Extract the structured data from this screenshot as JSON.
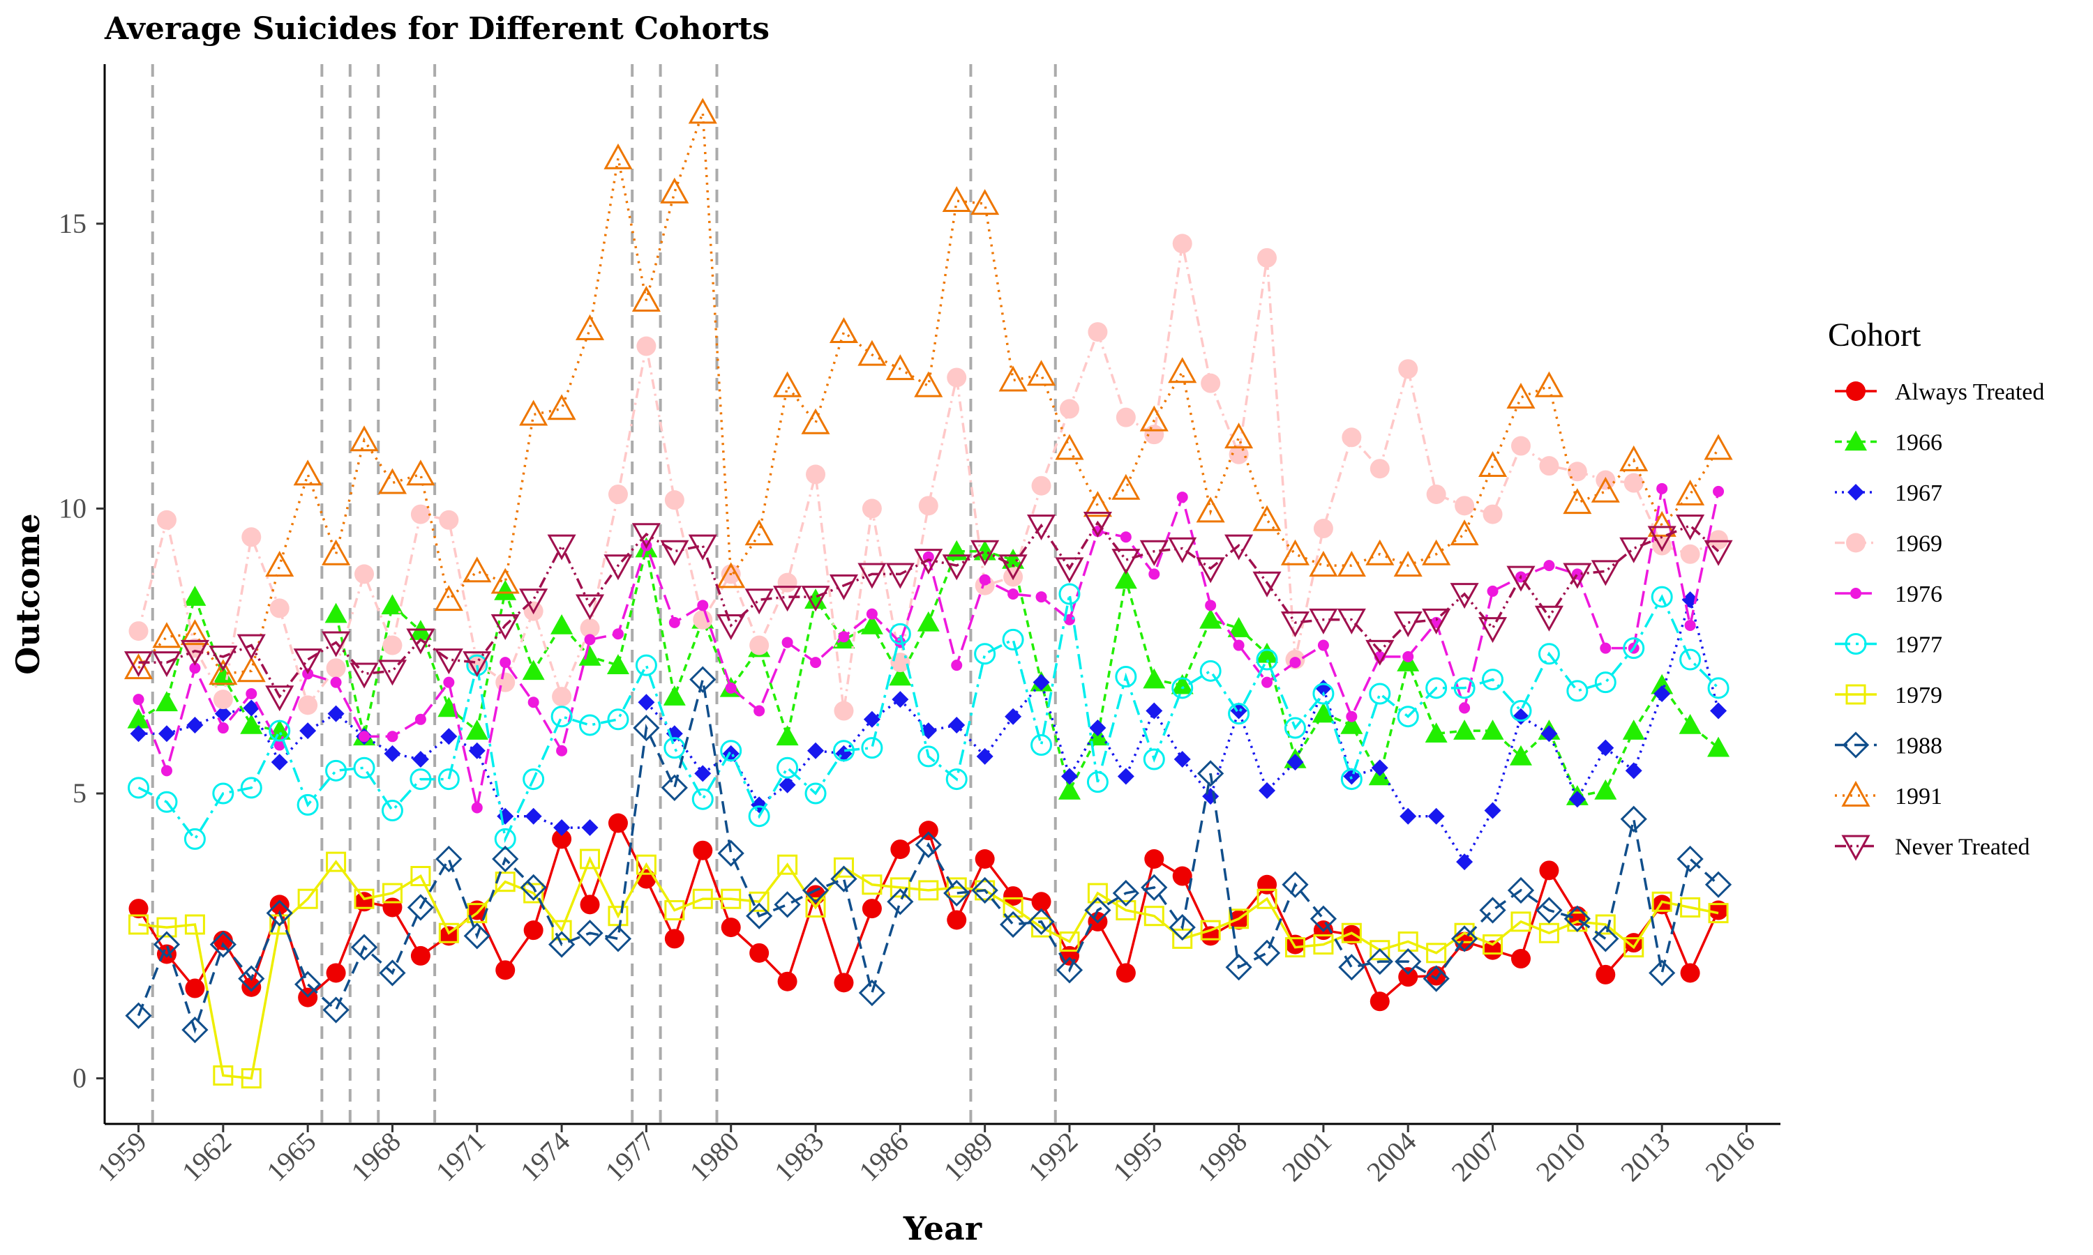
{
  "chart_data": {
    "type": "line",
    "title": "Average Suicides for Different Cohorts",
    "xlabel": "Year",
    "ylabel": "Outcome",
    "xlim": [
      1957.8,
      2017.2
    ],
    "ylim": [
      -0.8,
      17.8
    ],
    "xticks": [
      1959,
      1962,
      1965,
      1968,
      1971,
      1974,
      1977,
      1980,
      1983,
      1986,
      1989,
      1992,
      1995,
      1998,
      2001,
      2004,
      2007,
      2010,
      2013,
      2016
    ],
    "x_tick_labels": [
      "1959",
      "1962",
      "1965",
      "1968",
      "1971",
      "1974",
      "1977",
      "1980",
      "1983",
      "1986",
      "1989",
      "1992",
      "1995",
      "1998",
      "2001",
      "2004",
      "2007",
      "2010",
      "2013",
      "2016"
    ],
    "yticks": [
      0,
      5,
      10,
      15
    ],
    "y_tick_labels": [
      "0",
      "5",
      "10",
      "15"
    ],
    "vlines": [
      1959.5,
      1965.5,
      1966.5,
      1967.5,
      1969.5,
      1976.5,
      1977.5,
      1979.5,
      1988.5,
      1991.5
    ],
    "grid": false,
    "legend": {
      "title": "Cohort",
      "position": "right"
    },
    "x": [
      1959,
      1960,
      1961,
      1962,
      1963,
      1964,
      1965,
      1966,
      1967,
      1968,
      1969,
      1970,
      1971,
      1972,
      1973,
      1974,
      1975,
      1976,
      1977,
      1978,
      1979,
      1980,
      1981,
      1982,
      1983,
      1984,
      1985,
      1986,
      1987,
      1988,
      1989,
      1990,
      1991,
      1992,
      1993,
      1994,
      1995,
      1996,
      1997,
      1998,
      1999,
      2000,
      2001,
      2002,
      2003,
      2004,
      2005,
      2006,
      2007,
      2008,
      2009,
      2010,
      2011,
      2012,
      2013,
      2014,
      2015
    ],
    "series": [
      {
        "name": "Always Treated",
        "color": "#EE0000",
        "dash": "",
        "marker": "circle-filled",
        "values": [
          2.98,
          2.18,
          1.58,
          2.42,
          1.6,
          3.05,
          1.42,
          1.85,
          3.1,
          3.0,
          2.15,
          2.5,
          2.95,
          1.9,
          2.6,
          4.2,
          3.05,
          4.48,
          3.5,
          2.45,
          4.0,
          2.65,
          2.2,
          1.7,
          3.22,
          1.68,
          2.98,
          4.02,
          4.35,
          2.78,
          3.85,
          3.2,
          3.1,
          2.15,
          2.75,
          1.85,
          3.85,
          3.55,
          2.5,
          2.78,
          3.4,
          2.35,
          2.6,
          2.52,
          1.35,
          1.78,
          1.8,
          2.4,
          2.25,
          2.1,
          3.65,
          2.85,
          1.82,
          2.38,
          3.05,
          1.85,
          2.95
        ]
      },
      {
        "name": "1966",
        "color": "#22EE00",
        "dash": "10,7",
        "marker": "triangle-filled",
        "values": [
          6.3,
          6.6,
          8.45,
          7.05,
          6.2,
          6.1,
          null,
          8.15,
          6.0,
          8.3,
          7.85,
          6.5,
          6.1,
          8.55,
          7.15,
          7.95,
          7.4,
          7.25,
          9.3,
          6.7,
          8.05,
          6.85,
          7.55,
          6.0,
          8.4,
          7.7,
          7.95,
          7.05,
          8.0,
          9.25,
          9.25,
          9.1,
          6.95,
          5.05,
          6.0,
          8.75,
          7.0,
          6.9,
          8.05,
          7.9,
          7.45,
          5.6,
          6.4,
          6.2,
          5.3,
          7.3,
          6.05,
          6.1,
          6.1,
          5.65,
          6.1,
          4.95,
          5.05,
          6.1,
          6.9,
          6.2,
          5.8
        ]
      },
      {
        "name": "1967",
        "color": "#1818EE",
        "dash": "3,7",
        "marker": "diamond-filled",
        "values": [
          6.05,
          6.05,
          6.2,
          6.4,
          6.5,
          5.55,
          6.1,
          6.4,
          6.0,
          5.7,
          5.6,
          6.0,
          5.75,
          4.6,
          4.6,
          4.4,
          4.4,
          null,
          6.6,
          6.05,
          5.35,
          5.7,
          4.8,
          5.15,
          5.75,
          5.7,
          6.3,
          6.65,
          6.1,
          6.2,
          5.65,
          6.35,
          6.95,
          5.3,
          6.15,
          5.3,
          6.45,
          5.6,
          4.95,
          6.45,
          5.05,
          5.55,
          6.85,
          5.3,
          5.45,
          4.6,
          4.6,
          3.8,
          4.7,
          6.35,
          6.05,
          4.9,
          5.8,
          5.4,
          6.75,
          8.4,
          6.45
        ]
      },
      {
        "name": "1969",
        "color": "#FFC8C8",
        "dash": "14,7,3,7",
        "marker": "circle-filled",
        "values": [
          7.85,
          9.8,
          7.55,
          6.65,
          9.5,
          8.25,
          6.55,
          7.2,
          8.85,
          7.6,
          9.9,
          9.8,
          7.3,
          6.95,
          8.2,
          6.7,
          7.9,
          10.25,
          12.85,
          10.15,
          8.05,
          8.85,
          7.6,
          8.7,
          10.6,
          6.45,
          10.0,
          7.3,
          10.05,
          12.3,
          8.65,
          8.8,
          10.4,
          11.75,
          13.1,
          11.6,
          11.3,
          14.65,
          12.2,
          10.95,
          14.4,
          7.35,
          9.65,
          11.25,
          10.7,
          12.45,
          10.25,
          10.05,
          9.9,
          11.1,
          10.75,
          10.65,
          10.5,
          10.45,
          9.35,
          9.2,
          9.45
        ]
      },
      {
        "name": "1976",
        "color": "#EE18DD",
        "dash": "22,9",
        "marker": "circle-small",
        "values": [
          6.65,
          5.4,
          7.2,
          6.15,
          6.75,
          5.85,
          7.1,
          6.95,
          6.0,
          6.0,
          6.3,
          6.95,
          4.75,
          7.3,
          6.6,
          5.75,
          7.7,
          7.8,
          9.35,
          8.0,
          8.3,
          6.85,
          6.45,
          7.65,
          7.3,
          7.75,
          8.15,
          7.65,
          9.15,
          7.25,
          8.75,
          8.5,
          8.45,
          8.05,
          9.6,
          9.5,
          8.85,
          10.2,
          8.3,
          7.6,
          6.95,
          7.3,
          7.6,
          6.35,
          7.4,
          7.4,
          8.0,
          6.5,
          8.55,
          8.8,
          9.0,
          8.85,
          7.55,
          7.55,
          10.35,
          7.95,
          10.3
        ]
      },
      {
        "name": "1977",
        "color": "#00EEEE",
        "dash": "22,8,4,8",
        "marker": "circle-open",
        "values": [
          5.1,
          4.85,
          4.2,
          5.0,
          5.1,
          6.1,
          4.8,
          5.4,
          5.45,
          4.7,
          5.25,
          5.25,
          7.25,
          4.2,
          5.25,
          6.35,
          6.2,
          6.3,
          7.25,
          5.8,
          4.9,
          5.75,
          4.6,
          5.45,
          5.0,
          5.75,
          5.8,
          7.8,
          5.65,
          5.25,
          7.45,
          7.7,
          5.85,
          8.5,
          5.2,
          7.05,
          5.6,
          6.85,
          7.15,
          6.4,
          7.35,
          6.15,
          6.75,
          5.25,
          6.75,
          6.35,
          6.85,
          6.85,
          7.0,
          6.45,
          7.45,
          6.8,
          6.95,
          7.55,
          8.45,
          7.35,
          6.85
        ]
      },
      {
        "name": "1979",
        "color": "#EEEE00",
        "dash": "",
        "marker": "square-open",
        "values": [
          2.7,
          2.65,
          2.7,
          0.05,
          0.0,
          2.7,
          3.15,
          3.8,
          3.15,
          3.25,
          3.55,
          2.55,
          2.9,
          3.45,
          3.25,
          2.6,
          3.85,
          2.85,
          3.75,
          2.95,
          3.15,
          3.15,
          3.1,
          3.75,
          3.0,
          3.7,
          3.4,
          3.35,
          3.3,
          3.35,
          3.3,
          3.0,
          2.65,
          2.4,
          3.25,
          2.95,
          2.85,
          2.45,
          2.6,
          2.8,
          3.15,
          2.3,
          2.35,
          2.55,
          2.25,
          2.4,
          2.2,
          2.55,
          2.35,
          2.75,
          2.55,
          2.75,
          2.7,
          2.3,
          3.1,
          3.0,
          2.9
        ]
      },
      {
        "name": "1988",
        "color": "#104E8B",
        "dash": "18,10",
        "marker": "diamond-open",
        "values": [
          1.1,
          2.35,
          0.85,
          2.35,
          1.75,
          2.9,
          1.65,
          1.2,
          2.3,
          1.85,
          3.0,
          3.85,
          2.5,
          3.85,
          3.35,
          2.35,
          2.55,
          2.45,
          6.15,
          5.1,
          7.0,
          3.95,
          2.85,
          3.05,
          3.3,
          3.5,
          1.5,
          3.1,
          4.1,
          3.25,
          3.3,
          2.7,
          2.75,
          1.9,
          2.95,
          3.25,
          3.35,
          2.65,
          5.35,
          1.95,
          2.2,
          3.4,
          2.8,
          1.95,
          2.05,
          2.05,
          1.75,
          2.45,
          2.95,
          3.3,
          2.95,
          2.8,
          2.45,
          4.55,
          1.85,
          3.85,
          3.4
        ]
      },
      {
        "name": "1991",
        "color": "#EE7600",
        "dash": "3,8",
        "marker": "triangle-open",
        "values": [
          7.2,
          7.75,
          7.8,
          7.1,
          7.15,
          9.0,
          10.6,
          9.2,
          11.2,
          10.45,
          10.6,
          8.4,
          8.9,
          8.7,
          11.65,
          11.75,
          13.15,
          16.15,
          13.65,
          15.55,
          16.95,
          8.8,
          9.55,
          12.15,
          11.5,
          13.1,
          12.7,
          12.45,
          12.15,
          15.4,
          15.35,
          12.25,
          12.35,
          11.05,
          10.05,
          10.35,
          11.55,
          12.4,
          9.95,
          11.25,
          9.8,
          9.2,
          9.0,
          9.0,
          9.2,
          9.0,
          9.2,
          9.55,
          10.75,
          11.95,
          12.15,
          10.1,
          10.3,
          10.85,
          9.7,
          10.25,
          11.05
        ]
      },
      {
        "name": "Never Treated",
        "color": "#A0104E",
        "dash": "16,6,3,6,3,6",
        "marker": "triangle-down-open",
        "values": [
          7.3,
          7.3,
          7.5,
          7.4,
          7.6,
          6.7,
          7.35,
          7.65,
          7.1,
          7.15,
          7.7,
          7.35,
          7.3,
          7.95,
          8.4,
          9.35,
          8.3,
          9.0,
          9.55,
          9.25,
          9.35,
          7.95,
          8.4,
          8.45,
          8.45,
          8.65,
          8.85,
          8.85,
          9.1,
          9.0,
          9.25,
          9.0,
          9.7,
          8.95,
          9.75,
          9.1,
          9.25,
          9.3,
          8.95,
          9.35,
          8.7,
          8.0,
          8.05,
          8.05,
          7.5,
          8.0,
          8.05,
          8.5,
          7.9,
          8.8,
          8.1,
          8.85,
          8.9,
          9.3,
          9.5,
          9.7,
          9.25
        ]
      }
    ]
  }
}
